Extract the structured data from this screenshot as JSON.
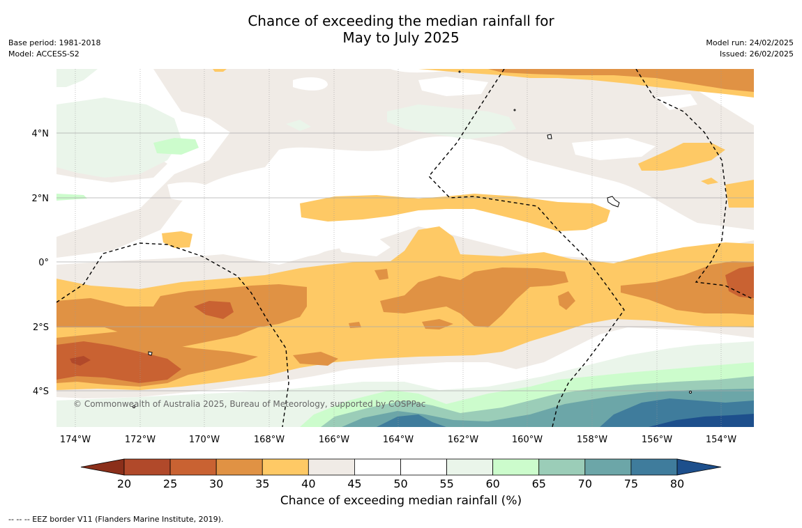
{
  "title": {
    "line1": "Chance of exceeding the median rainfall for",
    "line2": "May to July 2025"
  },
  "meta_left": {
    "base_period": "Base period: 1981-2018",
    "model": "Model: ACCESS-S2"
  },
  "meta_right": {
    "model_run": "Model run: 24/02/2025",
    "issued": "Issued: 26/02/2025"
  },
  "map": {
    "copyright": "© Commonwealth of Australia 2025, Bureau of Meteorology, supported by COSPPac",
    "lon_labels": [
      "174°W",
      "172°W",
      "170°W",
      "168°W",
      "166°W",
      "164°W",
      "162°W",
      "160°W",
      "158°W",
      "156°W",
      "154°W"
    ],
    "lat_labels": [
      "4°N",
      "2°N",
      "0°",
      "2°S",
      "4°S"
    ]
  },
  "colorbar": {
    "label": "Chance of exceeding median rainfall (%)",
    "ticks": [
      "20",
      "25",
      "30",
      "35",
      "40",
      "45",
      "50",
      "55",
      "60",
      "65",
      "70",
      "75",
      "80"
    ],
    "colors": [
      "#8b2f1a",
      "#b1492a",
      "#c96232",
      "#e09244",
      "#fec965",
      "#f0ebe6",
      "#ffffff",
      "#ffffff",
      "#eaf5ea",
      "#ccfccc",
      "#9bcdb8",
      "#6ca6a8",
      "#3f7c9c",
      "#1d4f8c"
    ]
  },
  "footer": {
    "eez_note": "--  --  -- EEZ border V11 (Flanders Marine Institute, 2019)."
  }
}
